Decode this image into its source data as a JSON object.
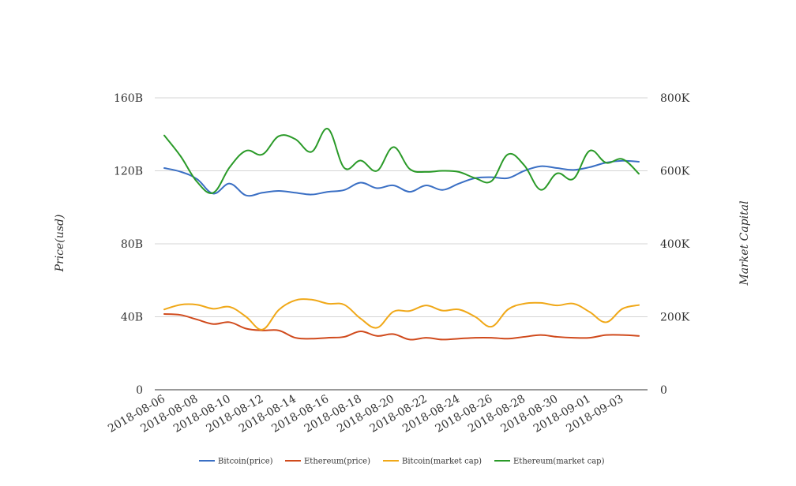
{
  "chart_data": {
    "type": "line",
    "title": "",
    "xlabel": "",
    "ylabel_left": "Price(usd)",
    "ylabel_right": "Market Capital",
    "ylim_left": [
      0,
      160000000000
    ],
    "ylim_right": [
      0,
      800000
    ],
    "y_ticks_left": [
      "0",
      "40B",
      "80B",
      "120B",
      "160B"
    ],
    "y_ticks_right": [
      "0",
      "200K",
      "400K",
      "600K",
      "800K"
    ],
    "x_tick_labels": [
      "2018-08-06",
      "2018-08-08",
      "2018-08-10",
      "2018-08-12",
      "2018-08-14",
      "2018-08-16",
      "2018-08-18",
      "2018-08-20",
      "2018-08-22",
      "2018-08-24",
      "2018-08-26",
      "2018-08-28",
      "2018-08-30",
      "2018-09-01",
      "2018-09-03"
    ],
    "x": [
      "2018-08-06",
      "2018-08-07",
      "2018-08-08",
      "2018-08-09",
      "2018-08-10",
      "2018-08-11",
      "2018-08-12",
      "2018-08-13",
      "2018-08-14",
      "2018-08-15",
      "2018-08-16",
      "2018-08-17",
      "2018-08-18",
      "2018-08-19",
      "2018-08-20",
      "2018-08-21",
      "2018-08-22",
      "2018-08-23",
      "2018-08-24",
      "2018-08-25",
      "2018-08-26",
      "2018-08-27",
      "2018-08-28",
      "2018-08-29",
      "2018-08-30",
      "2018-08-31",
      "2018-09-01",
      "2018-09-02",
      "2018-09-03",
      "2018-09-04"
    ],
    "grid": true,
    "legend_position": "bottom",
    "series": [
      {
        "name": "Bitcoin(price)",
        "axis": "left",
        "color": "#3a6fc4",
        "values": [
          121500000000,
          119500000000,
          115500000000,
          107500000000,
          113000000000,
          106500000000,
          108000000000,
          109000000000,
          108000000000,
          107000000000,
          108500000000,
          109500000000,
          113500000000,
          110500000000,
          112000000000,
          108500000000,
          112000000000,
          109500000000,
          113000000000,
          116000000000,
          116500000000,
          116000000000,
          120000000000,
          122500000000,
          121500000000,
          120500000000,
          122000000000,
          124500000000,
          125500000000,
          125000000000
        ]
      },
      {
        "name": "Ethereum(price)",
        "axis": "left",
        "color": "#d04a1c",
        "values": [
          41500000000,
          41000000000,
          38500000000,
          36000000000,
          37000000000,
          33500000000,
          32500000000,
          32500000000,
          28500000000,
          28000000000,
          28500000000,
          29000000000,
          32000000000,
          29500000000,
          30500000000,
          27500000000,
          28500000000,
          27500000000,
          28000000000,
          28500000000,
          28500000000,
          28000000000,
          29000000000,
          30000000000,
          29000000000,
          28500000000,
          28500000000,
          30000000000,
          30000000000,
          29500000000
        ]
      },
      {
        "name": "Bitcoin(market cap)",
        "axis": "right",
        "color": "#f0a818",
        "values": [
          220000,
          233000,
          233000,
          222000,
          227000,
          200000,
          165000,
          219000,
          245000,
          247000,
          236000,
          233000,
          195000,
          170000,
          214000,
          216000,
          231000,
          217000,
          220000,
          200000,
          173000,
          220000,
          236000,
          238000,
          231000,
          236000,
          213000,
          185000,
          222000,
          232000
        ]
      },
      {
        "name": "Ethereum(market cap)",
        "axis": "right",
        "color": "#2a9a28",
        "values": [
          697000,
          640000,
          570000,
          540000,
          610000,
          655000,
          645000,
          695000,
          687000,
          652000,
          715000,
          608000,
          628000,
          600000,
          665000,
          605000,
          597000,
          600000,
          597000,
          580000,
          572000,
          645000,
          615000,
          548000,
          593000,
          578000,
          655000,
          622000,
          632000,
          592000
        ]
      }
    ]
  }
}
